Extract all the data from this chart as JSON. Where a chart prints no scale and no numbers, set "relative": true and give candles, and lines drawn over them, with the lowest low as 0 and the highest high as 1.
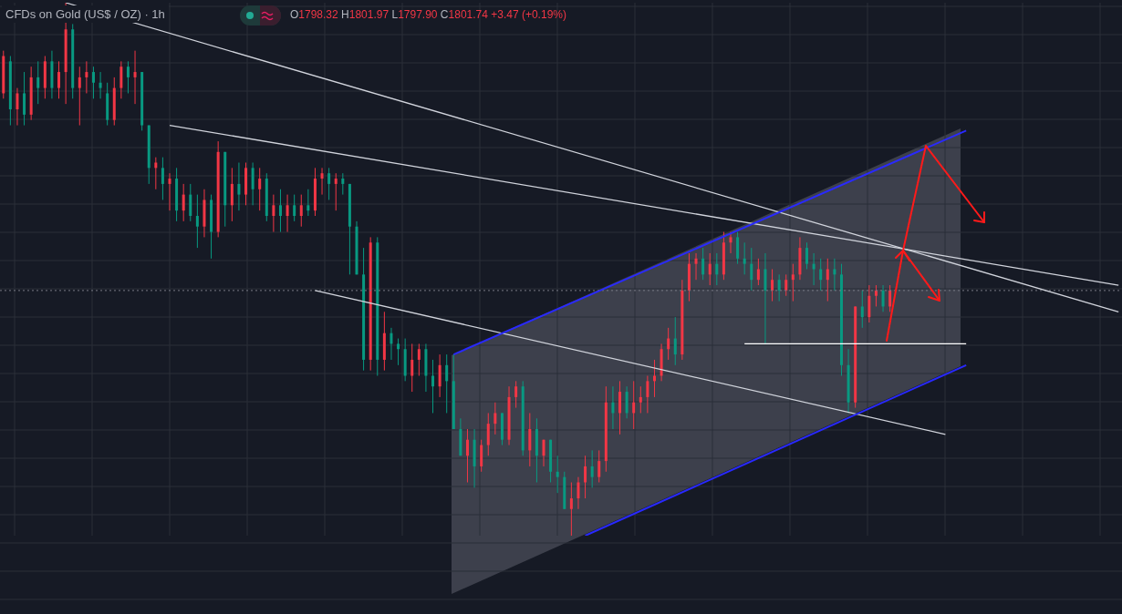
{
  "chart_data": {
    "type": "candlestick",
    "title": "CFDs on Gold (US$ / OZ) · 1h",
    "annotations": [
      "O1798.32 H1801.97 L1797.90 C1801.74 +3.47 (+0.19%)"
    ],
    "relative": true,
    "grid": true,
    "categories": [
      null,
      null,
      null,
      null,
      null,
      null,
      null,
      null,
      null,
      null,
      null,
      null,
      null,
      null,
      null,
      null,
      null,
      null,
      null,
      null,
      null,
      null,
      null,
      null,
      null,
      null,
      null,
      null,
      null,
      null,
      null,
      null,
      null,
      null,
      null,
      null,
      null,
      null,
      null,
      null,
      null,
      null,
      null,
      null,
      null,
      null,
      null,
      null,
      null,
      null,
      null,
      null,
      null,
      null,
      null,
      null,
      null,
      null,
      null,
      null,
      null,
      null,
      null,
      null,
      null,
      null,
      null,
      null,
      null,
      null,
      null,
      null,
      null,
      null,
      null,
      null,
      null,
      null,
      null,
      null,
      null,
      null,
      null,
      null,
      null,
      null,
      null,
      null,
      null,
      null,
      null,
      null,
      null,
      null,
      null,
      null,
      null,
      null,
      null,
      null,
      null,
      null,
      null,
      null,
      null,
      null,
      null,
      null,
      null,
      null,
      null,
      null,
      null,
      null,
      null,
      null,
      null,
      null,
      null,
      null,
      null,
      null,
      null,
      null,
      null,
      null,
      null,
      null,
      null,
      null,
      null,
      null,
      null,
      null,
      null,
      null,
      null,
      null,
      null,
      null,
      null,
      null,
      null,
      null,
      null,
      null,
      null,
      null,
      null,
      null,
      null,
      null,
      null,
      null,
      null,
      null,
      null,
      null,
      null,
      null,
      null,
      null
    ],
    "ohlc": [
      [
        0.83,
        0.91,
        0.82,
        0.9
      ],
      [
        0.89,
        0.9,
        0.77,
        0.8
      ],
      [
        0.8,
        0.84,
        0.77,
        0.83
      ],
      [
        0.83,
        0.87,
        0.77,
        0.79
      ],
      [
        0.79,
        0.88,
        0.78,
        0.86
      ],
      [
        0.86,
        0.89,
        0.81,
        0.84
      ],
      [
        0.84,
        0.9,
        0.82,
        0.89
      ],
      [
        0.89,
        0.91,
        0.82,
        0.84
      ],
      [
        0.84,
        0.89,
        0.82,
        0.87
      ],
      [
        0.87,
        1.0,
        0.81,
        0.95
      ],
      [
        0.95,
        0.96,
        0.82,
        0.84
      ],
      [
        0.84,
        0.88,
        0.77,
        0.86
      ],
      [
        0.86,
        0.89,
        0.83,
        0.87
      ],
      [
        0.87,
        0.88,
        0.82,
        0.85
      ],
      [
        0.85,
        0.87,
        0.82,
        0.84
      ],
      [
        0.83,
        0.85,
        0.77,
        0.78
      ],
      [
        0.78,
        0.86,
        0.77,
        0.84
      ],
      [
        0.84,
        0.89,
        0.82,
        0.88
      ],
      [
        0.88,
        0.89,
        0.83,
        0.86
      ],
      [
        0.86,
        0.91,
        0.81,
        0.87
      ],
      [
        0.87,
        0.87,
        0.76,
        0.77
      ],
      [
        0.77,
        0.77,
        0.66,
        0.69
      ],
      [
        0.69,
        0.71,
        0.65,
        0.7
      ],
      [
        0.69,
        0.71,
        0.63,
        0.66
      ],
      [
        0.66,
        0.68,
        0.61,
        0.67
      ],
      [
        0.67,
        0.69,
        0.59,
        0.61
      ],
      [
        0.61,
        0.66,
        0.59,
        0.64
      ],
      [
        0.64,
        0.66,
        0.59,
        0.6
      ],
      [
        0.6,
        0.64,
        0.54,
        0.58
      ],
      [
        0.58,
        0.65,
        0.56,
        0.63
      ],
      [
        0.63,
        0.64,
        0.52,
        0.57
      ],
      [
        0.57,
        0.74,
        0.56,
        0.72
      ],
      [
        0.72,
        0.72,
        0.58,
        0.62
      ],
      [
        0.62,
        0.69,
        0.59,
        0.66
      ],
      [
        0.66,
        0.7,
        0.61,
        0.64
      ],
      [
        0.64,
        0.7,
        0.62,
        0.69
      ],
      [
        0.69,
        0.7,
        0.62,
        0.65
      ],
      [
        0.65,
        0.69,
        0.61,
        0.67
      ],
      [
        0.67,
        0.68,
        0.59,
        0.6
      ],
      [
        0.6,
        0.64,
        0.57,
        0.62
      ],
      [
        0.62,
        0.65,
        0.57,
        0.6
      ],
      [
        0.6,
        0.64,
        0.57,
        0.62
      ],
      [
        0.62,
        0.64,
        0.59,
        0.6
      ],
      [
        0.6,
        0.64,
        0.58,
        0.62
      ],
      [
        0.62,
        0.65,
        0.6,
        0.61
      ],
      [
        0.61,
        0.69,
        0.6,
        0.67
      ],
      [
        0.67,
        0.69,
        0.64,
        0.68
      ],
      [
        0.68,
        0.69,
        0.63,
        0.66
      ],
      [
        0.66,
        0.68,
        0.61,
        0.67
      ],
      [
        0.67,
        0.68,
        0.64,
        0.66
      ],
      [
        0.66,
        0.66,
        0.49,
        0.58
      ],
      [
        0.58,
        0.59,
        0.49,
        0.49
      ],
      [
        0.49,
        0.54,
        0.31,
        0.33
      ],
      [
        0.33,
        0.56,
        0.31,
        0.55
      ],
      [
        0.55,
        0.56,
        0.3,
        0.33
      ],
      [
        0.33,
        0.42,
        0.31,
        0.38
      ],
      [
        0.38,
        0.39,
        0.33,
        0.36
      ],
      [
        0.36,
        0.37,
        0.32,
        0.35
      ],
      [
        0.35,
        0.37,
        0.29,
        0.3
      ],
      [
        0.3,
        0.36,
        0.27,
        0.33
      ],
      [
        0.33,
        0.36,
        0.3,
        0.35
      ],
      [
        0.35,
        0.36,
        0.27,
        0.3
      ],
      [
        0.3,
        0.33,
        0.23,
        0.28
      ],
      [
        0.28,
        0.34,
        0.26,
        0.32
      ],
      [
        0.32,
        0.34,
        0.23,
        0.29
      ],
      [
        0.29,
        0.34,
        0.2,
        0.2
      ],
      [
        0.2,
        0.22,
        0.15,
        0.15
      ],
      [
        0.15,
        0.2,
        0.1,
        0.18
      ],
      [
        0.18,
        0.2,
        0.09,
        0.13
      ],
      [
        0.13,
        0.18,
        0.12,
        0.17
      ],
      [
        0.17,
        0.23,
        0.15,
        0.21
      ],
      [
        0.21,
        0.25,
        0.19,
        0.23
      ],
      [
        0.23,
        0.23,
        0.17,
        0.18
      ],
      [
        0.18,
        0.28,
        0.17,
        0.26
      ],
      [
        0.26,
        0.29,
        0.24,
        0.28
      ],
      [
        0.28,
        0.29,
        0.15,
        0.16
      ],
      [
        0.16,
        0.23,
        0.13,
        0.2
      ],
      [
        0.2,
        0.22,
        0.1,
        0.15
      ],
      [
        0.15,
        0.18,
        0.13,
        0.18
      ],
      [
        0.18,
        0.18,
        0.1,
        0.12
      ],
      [
        0.12,
        0.15,
        0.08,
        0.11
      ],
      [
        0.11,
        0.12,
        0.05,
        0.05
      ],
      [
        0.05,
        0.1,
        0.0,
        0.07
      ],
      [
        0.07,
        0.11,
        0.05,
        0.1
      ],
      [
        0.1,
        0.15,
        0.07,
        0.13
      ],
      [
        0.13,
        0.16,
        0.09,
        0.11
      ],
      [
        0.11,
        0.16,
        0.1,
        0.14
      ],
      [
        0.14,
        0.28,
        0.12,
        0.25
      ],
      [
        0.25,
        0.28,
        0.2,
        0.23
      ],
      [
        0.23,
        0.29,
        0.19,
        0.27
      ],
      [
        0.27,
        0.28,
        0.22,
        0.23
      ],
      [
        0.23,
        0.29,
        0.2,
        0.25
      ],
      [
        0.25,
        0.28,
        0.23,
        0.26
      ],
      [
        0.26,
        0.3,
        0.23,
        0.29
      ],
      [
        0.29,
        0.33,
        0.26,
        0.3
      ],
      [
        0.3,
        0.36,
        0.29,
        0.35
      ],
      [
        0.35,
        0.39,
        0.33,
        0.37
      ],
      [
        0.37,
        0.41,
        0.32,
        0.34
      ],
      [
        0.34,
        0.48,
        0.33,
        0.46
      ],
      [
        0.46,
        0.53,
        0.44,
        0.51
      ],
      [
        0.51,
        0.53,
        0.48,
        0.52
      ],
      [
        0.52,
        0.54,
        0.48,
        0.49
      ],
      [
        0.49,
        0.53,
        0.47,
        0.51
      ],
      [
        0.51,
        0.53,
        0.47,
        0.49
      ],
      [
        0.49,
        0.57,
        0.48,
        0.55
      ],
      [
        0.55,
        0.57,
        0.53,
        0.56
      ],
      [
        0.56,
        0.57,
        0.51,
        0.52
      ],
      [
        0.52,
        0.55,
        0.49,
        0.51
      ],
      [
        0.51,
        0.54,
        0.46,
        0.48
      ],
      [
        0.48,
        0.52,
        0.47,
        0.5
      ],
      [
        0.5,
        0.53,
        0.36,
        0.46
      ],
      [
        0.46,
        0.5,
        0.44,
        0.48
      ],
      [
        0.48,
        0.49,
        0.44,
        0.46
      ],
      [
        0.46,
        0.49,
        0.45,
        0.48
      ],
      [
        0.48,
        0.51,
        0.44,
        0.49
      ],
      [
        0.49,
        0.56,
        0.48,
        0.54
      ],
      [
        0.54,
        0.55,
        0.5,
        0.51
      ],
      [
        0.51,
        0.53,
        0.47,
        0.5
      ],
      [
        0.5,
        0.52,
        0.46,
        0.48
      ],
      [
        0.48,
        0.52,
        0.44,
        0.5
      ],
      [
        0.5,
        0.52,
        0.46,
        0.49
      ],
      [
        0.49,
        0.51,
        0.3,
        0.32
      ],
      [
        0.32,
        0.35,
        0.23,
        0.25
      ],
      [
        0.25,
        0.43,
        0.24,
        0.43
      ],
      [
        0.43,
        0.46,
        0.39,
        0.41
      ],
      [
        0.41,
        0.47,
        0.4,
        0.45
      ],
      [
        0.45,
        0.47,
        0.43,
        0.46
      ],
      [
        0.46,
        0.47,
        0.42,
        0.43
      ],
      [
        0.43,
        0.47,
        0.42,
        0.46
      ],
      null,
      null,
      null,
      null,
      null,
      null,
      null,
      null,
      null,
      null,
      null,
      null,
      null,
      null,
      null,
      null,
      null,
      null,
      null,
      null,
      null,
      null,
      null,
      null,
      null,
      null,
      null,
      null,
      null,
      null,
      null,
      null,
      null
    ],
    "colors": [
      "#f23645",
      "#089981",
      "#f23645",
      "#089981",
      "#f23645",
      "#089981",
      "#f23645",
      "#089981",
      "#f23645",
      "#f23645",
      "#089981",
      "#f23645",
      "#f23645",
      "#089981",
      "#089981",
      "#089981",
      "#f23645",
      "#f23645",
      "#089981",
      "#f23645",
      "#089981",
      "#089981",
      "#f23645",
      "#089981",
      "#f23645",
      "#089981",
      "#f23645",
      "#089981",
      "#089981",
      "#f23645",
      "#089981",
      "#f23645",
      "#089981",
      "#f23645",
      "#089981",
      "#f23645",
      "#089981",
      "#f23645",
      "#089981",
      "#f23645",
      "#089981",
      "#f23645",
      "#089981",
      "#f23645",
      "#089981",
      "#f23645",
      "#f23645",
      "#089981",
      "#f23645",
      "#089981",
      "#089981",
      "#089981",
      "#089981",
      "#f23645",
      "#089981",
      "#f23645",
      "#089981",
      "#089981",
      "#089981",
      "#f23645",
      "#f23645",
      "#089981",
      "#089981",
      "#f23645",
      "#089981",
      "#089981",
      "#089981",
      "#f23645",
      "#089981",
      "#f23645",
      "#f23645",
      "#f23645",
      "#089981",
      "#f23645",
      "#f23645",
      "#089981",
      "#f23645",
      "#089981",
      "#f23645",
      "#089981",
      "#089981",
      "#089981",
      "#f23645",
      "#f23645",
      "#f23645",
      "#089981",
      "#f23645",
      "#f23645",
      "#089981",
      "#f23645",
      "#089981",
      "#f23645",
      "#f23645",
      "#f23645",
      "#f23645",
      "#f23645",
      "#f23645",
      "#089981",
      "#f23645",
      "#f23645",
      "#f23645",
      "#089981",
      "#f23645",
      "#089981",
      "#f23645",
      "#f23645",
      "#089981",
      "#089981",
      "#089981",
      "#f23645",
      "#089981",
      "#f23645",
      "#089981",
      "#f23645",
      "#f23645",
      "#f23645",
      "#089981",
      "#089981",
      "#089981",
      "#f23645",
      "#089981",
      "#089981",
      "#089981",
      "#f23645",
      "#089981",
      "#f23645",
      "#f23645",
      "#089981",
      "#f23645",
      null,
      null,
      null,
      null,
      null,
      null,
      null,
      null,
      null,
      null,
      null,
      null,
      null,
      null,
      null,
      null,
      null,
      null,
      null,
      null,
      null,
      null,
      null,
      null,
      null,
      null,
      null,
      null,
      null,
      null,
      null,
      null,
      null
    ],
    "series": [
      {
        "type": "line",
        "color": "#d1d4dc",
        "values": [
          null,
          null,
          null,
          null,
          null,
          null,
          null,
          null,
          null,
          1.0,
          null,
          null,
          null,
          null,
          null,
          null,
          null,
          null,
          null,
          null,
          null,
          null,
          null,
          null,
          null,
          null,
          null,
          null,
          null,
          null,
          null,
          null,
          null,
          null,
          null,
          null,
          null,
          null,
          null,
          null,
          null,
          null,
          null,
          null,
          null,
          null,
          null,
          null,
          null,
          null,
          null,
          null,
          null,
          null,
          null,
          null,
          null,
          null,
          null,
          null,
          null,
          null,
          null,
          null,
          null,
          null,
          null,
          null,
          null,
          null,
          null,
          null,
          null,
          null,
          null,
          null,
          null,
          null,
          null,
          null,
          null,
          null,
          null,
          null,
          null,
          null,
          null,
          null,
          null,
          null,
          null,
          null,
          null,
          null,
          null,
          null,
          null,
          null,
          null,
          null,
          null,
          null,
          null,
          null,
          null,
          null,
          null,
          null,
          null,
          null,
          null,
          null,
          null,
          null,
          null,
          null,
          null,
          null,
          null,
          null,
          null,
          null,
          null,
          null,
          null,
          null,
          null,
          null,
          null,
          null,
          null,
          null,
          null,
          null,
          null,
          null,
          null,
          null,
          null,
          null,
          null,
          null,
          null,
          null,
          null,
          null,
          null,
          null,
          null,
          null,
          null,
          null,
          null,
          null,
          null,
          null,
          null,
          null,
          null,
          null,
          null,
          0.42
        ]
      },
      {
        "type": "line",
        "color": "#d1d4dc",
        "values": [
          null,
          null,
          null,
          null,
          null,
          null,
          null,
          null,
          null,
          null,
          null,
          null,
          null,
          null,
          null,
          null,
          null,
          null,
          null,
          null,
          null,
          null,
          null,
          null,
          0.77,
          null,
          null,
          null,
          null,
          null,
          null,
          null,
          null,
          null,
          null,
          null,
          null,
          null,
          null,
          null,
          null,
          null,
          null,
          null,
          null,
          null,
          null,
          null,
          null,
          null,
          null,
          null,
          null,
          null,
          null,
          null,
          null,
          null,
          null,
          null,
          null,
          null,
          null,
          null,
          null,
          null,
          null,
          null,
          null,
          null,
          null,
          null,
          null,
          null,
          null,
          null,
          null,
          null,
          null,
          null,
          null,
          null,
          null,
          null,
          null,
          null,
          null,
          null,
          null,
          null,
          null,
          null,
          null,
          null,
          null,
          null,
          null,
          null,
          null,
          null,
          null,
          null,
          null,
          null,
          null,
          null,
          null,
          null,
          null,
          null,
          null,
          null,
          null,
          null,
          null,
          null,
          null,
          null,
          null,
          null,
          null,
          null,
          null,
          null,
          null,
          null,
          null,
          null,
          null,
          null,
          null,
          null,
          null,
          null,
          null,
          null,
          null,
          null,
          null,
          null,
          null,
          null,
          null,
          null,
          null,
          null,
          null,
          null,
          null,
          null,
          null,
          null,
          null,
          null,
          null,
          null,
          null,
          null,
          null,
          null,
          null,
          0.47
        ]
      },
      {
        "type": "line",
        "color": "#d1d4dc",
        "values": [
          null,
          null,
          null,
          null,
          null,
          null,
          null,
          null,
          null,
          null,
          null,
          null,
          null,
          null,
          null,
          null,
          null,
          null,
          null,
          null,
          null,
          null,
          null,
          null,
          null,
          null,
          null,
          null,
          null,
          null,
          null,
          null,
          null,
          null,
          null,
          null,
          null,
          null,
          null,
          null,
          null,
          null,
          null,
          null,
          null,
          0.46,
          null,
          null,
          null,
          null,
          null,
          null,
          null,
          null,
          null,
          null,
          null,
          null,
          null,
          null,
          null,
          null,
          null,
          null,
          null,
          null,
          null,
          null,
          null,
          null,
          null,
          null,
          null,
          null,
          null,
          null,
          null,
          null,
          null,
          null,
          null,
          null,
          null,
          null,
          null,
          null,
          null,
          null,
          null,
          null,
          null,
          null,
          null,
          null,
          null,
          null,
          null,
          null,
          null,
          null,
          null,
          null,
          null,
          null,
          null,
          null,
          null,
          null,
          null,
          null,
          null,
          null,
          null,
          null,
          null,
          null,
          null,
          null,
          null,
          null,
          null,
          null,
          null,
          null,
          null,
          null,
          null,
          null,
          null,
          null,
          null,
          null,
          null,
          null,
          null,
          null,
          0.19,
          null,
          null,
          null,
          null,
          null,
          null,
          null,
          null,
          null,
          null,
          null,
          null,
          null,
          null,
          null,
          null,
          null,
          null,
          null,
          null,
          null,
          null,
          null,
          null,
          null
        ]
      },
      {
        "type": "line",
        "color": "#2929ff",
        "values": [
          null,
          null,
          null,
          null,
          null,
          null,
          null,
          null,
          null,
          null,
          null,
          null,
          null,
          null,
          null,
          null,
          null,
          null,
          null,
          null,
          null,
          null,
          null,
          null,
          null,
          null,
          null,
          null,
          null,
          null,
          null,
          null,
          null,
          null,
          null,
          null,
          null,
          null,
          null,
          null,
          null,
          null,
          null,
          null,
          null,
          null,
          null,
          null,
          null,
          null,
          null,
          null,
          null,
          null,
          null,
          null,
          null,
          null,
          null,
          null,
          null,
          null,
          null,
          null,
          null,
          0.34,
          null,
          null,
          null,
          null,
          null,
          null,
          null,
          null,
          null,
          null,
          null,
          null,
          null,
          null,
          null,
          null,
          null,
          null,
          null,
          null,
          null,
          null,
          null,
          null,
          null,
          null,
          null,
          null,
          null,
          null,
          null,
          null,
          null,
          null,
          null,
          null,
          null,
          null,
          null,
          null,
          null,
          null,
          null,
          null,
          null,
          null,
          null,
          null,
          null,
          null,
          null,
          null,
          null,
          null,
          null,
          null,
          null,
          null,
          null,
          null,
          null,
          null,
          null,
          null,
          null,
          null,
          null,
          null,
          null,
          null,
          null,
          null,
          null,
          0.76,
          null,
          null,
          null,
          null,
          null,
          null,
          null,
          null,
          null,
          null,
          null,
          null,
          null,
          null,
          null,
          null,
          null,
          null,
          null,
          null,
          null,
          null
        ]
      },
      {
        "type": "line",
        "color": "#2929ff",
        "values": [
          null,
          null,
          null,
          null,
          null,
          null,
          null,
          null,
          null,
          null,
          null,
          null,
          null,
          null,
          null,
          null,
          null,
          null,
          null,
          null,
          null,
          null,
          null,
          null,
          null,
          null,
          null,
          null,
          null,
          null,
          null,
          null,
          null,
          null,
          null,
          null,
          null,
          null,
          null,
          null,
          null,
          null,
          null,
          null,
          null,
          null,
          null,
          null,
          null,
          null,
          null,
          null,
          null,
          null,
          null,
          null,
          null,
          null,
          null,
          null,
          null,
          null,
          null,
          null,
          null,
          null,
          null,
          null,
          null,
          null,
          null,
          null,
          null,
          null,
          null,
          null,
          null,
          null,
          null,
          null,
          null,
          null,
          null,
          null,
          0.0,
          null,
          null,
          null,
          null,
          null,
          null,
          null,
          null,
          null,
          null,
          null,
          null,
          null,
          null,
          null,
          null,
          null,
          null,
          null,
          null,
          null,
          null,
          null,
          null,
          null,
          null,
          null,
          null,
          null,
          null,
          null,
          null,
          null,
          null,
          null,
          null,
          null,
          null,
          null,
          null,
          null,
          null,
          null,
          null,
          null,
          null,
          null,
          null,
          null,
          null,
          null,
          null,
          null,
          null,
          0.32,
          null,
          null,
          null,
          null,
          null,
          null,
          null,
          null,
          null,
          null,
          null,
          null,
          null,
          null,
          null,
          null,
          null,
          null,
          null,
          null,
          null,
          null
        ]
      },
      {
        "type": "line",
        "color": "#ffffff",
        "values": [
          null,
          null,
          null,
          null,
          null,
          null,
          null,
          null,
          null,
          null,
          null,
          null,
          null,
          null,
          null,
          null,
          null,
          null,
          null,
          null,
          null,
          null,
          null,
          null,
          null,
          null,
          null,
          null,
          null,
          null,
          null,
          null,
          null,
          null,
          null,
          null,
          null,
          null,
          null,
          null,
          null,
          null,
          null,
          null,
          null,
          null,
          null,
          null,
          null,
          null,
          null,
          null,
          null,
          null,
          null,
          null,
          null,
          null,
          null,
          null,
          null,
          null,
          null,
          null,
          null,
          null,
          null,
          null,
          null,
          null,
          null,
          null,
          null,
          null,
          null,
          null,
          null,
          null,
          null,
          null,
          null,
          null,
          null,
          null,
          null,
          null,
          null,
          null,
          null,
          null,
          null,
          null,
          null,
          null,
          null,
          null,
          null,
          null,
          null,
          null,
          null,
          null,
          null,
          null,
          null,
          null,
          null,
          0.36,
          null,
          null,
          null,
          null,
          null,
          null,
          null,
          null,
          null,
          null,
          null,
          null,
          null,
          null,
          null,
          null,
          null,
          null,
          null,
          null,
          null,
          null,
          null,
          null,
          null,
          null,
          null,
          null,
          null,
          null,
          null,
          0.36,
          null,
          null,
          null,
          null,
          null,
          null,
          null,
          null,
          null,
          null,
          null,
          null,
          null,
          null,
          null,
          null,
          null,
          null,
          null,
          null,
          null,
          null
        ]
      }
    ],
    "ref_lines": [
      {
        "axis": "y",
        "value": 0.46,
        "line_style": "dotted",
        "color": "#787b86"
      }
    ]
  }
}
